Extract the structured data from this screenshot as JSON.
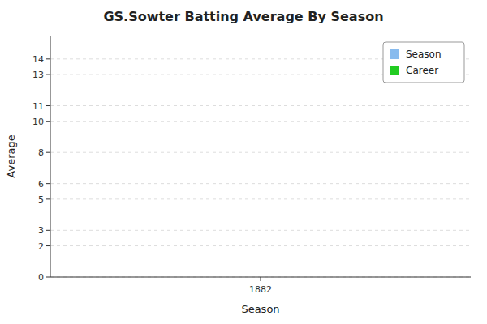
{
  "chart_data": {
    "type": "bar",
    "title": "GS.Sowter Batting Average By Season",
    "xlabel": "Season",
    "ylabel": "Average",
    "x": [],
    "series": [
      {
        "name": "Season",
        "color": "#88bbee",
        "values": []
      },
      {
        "name": "Career",
        "color": "#22cc22",
        "values": []
      }
    ],
    "xlim": [
      1881.5,
      1882.5
    ],
    "xticks": [
      1882
    ],
    "ylim": [
      0,
      15.5
    ],
    "yticks": [
      0,
      2,
      3,
      5,
      6,
      8,
      10,
      11,
      13,
      14
    ],
    "grid": true,
    "legend": "upper right"
  }
}
